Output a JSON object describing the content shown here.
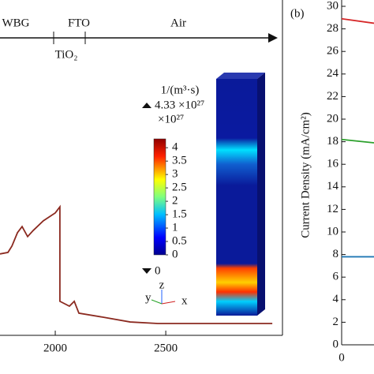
{
  "chart_data": [
    {
      "type": "line",
      "regions": [
        "WBG",
        "FTO",
        "Air",
        "TiO₂"
      ],
      "xlim": [
        1750,
        3028
      ],
      "xticks": [
        2000,
        2500
      ],
      "ylim": [
        0,
        100
      ],
      "series": [
        {
          "color": "#8b2a20",
          "x": [
            1750,
            1786,
            1804,
            1829,
            1850,
            1875,
            1900,
            1946,
            2000,
            2021,
            2021,
            2064,
            2086,
            2107,
            2214,
            2339,
            2464,
            2982
          ],
          "values": [
            26.8,
            27.3,
            29.4,
            33.8,
            35.8,
            32.5,
            34.5,
            37.7,
            40.3,
            42.3,
            11.2,
            9.6,
            11.2,
            7.3,
            6.0,
            4.4,
            3.9,
            3.9
          ]
        }
      ],
      "colorbar": {
        "unit": "1/(m³·s)",
        "max_label": "4.33 ×10²⁷",
        "scale_label": "×10²⁷",
        "min_label": "0",
        "lim": [
          0,
          4.33
        ],
        "ticks": [
          0,
          0.5,
          1,
          1.5,
          2,
          2.5,
          3,
          3.5,
          4
        ]
      }
    },
    {
      "type": "line",
      "panel_label": "(b)",
      "y_label": "Current Density (mA/cm²)",
      "xlim": [
        0,
        0.1
      ],
      "xticks": [
        0
      ],
      "ylim": [
        0,
        30
      ],
      "yticks": [
        0,
        2,
        4,
        6,
        8,
        10,
        12,
        14,
        16,
        18,
        20,
        22,
        24,
        26,
        28,
        30
      ],
      "series": [
        {
          "color": "#d62728",
          "x": [
            0,
            0.1
          ],
          "values": [
            28.9,
            28.5
          ]
        },
        {
          "color": "#2ca02c",
          "x": [
            0,
            0.1
          ],
          "values": [
            18.2,
            17.9
          ]
        },
        {
          "color": "#1f77b4",
          "x": [
            0,
            0.1
          ],
          "values": [
            7.8,
            7.8
          ]
        }
      ]
    }
  ]
}
